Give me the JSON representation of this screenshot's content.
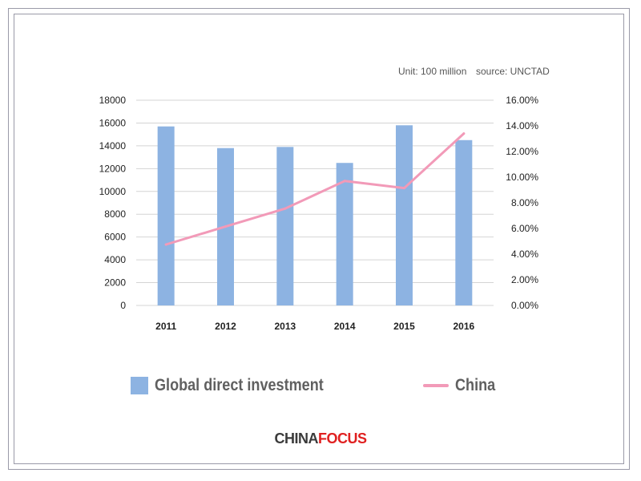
{
  "unit_note": "Unit: 100 million",
  "source_note": "source: UNCTAD",
  "logo": {
    "part1": "CHINA",
    "part2": "F",
    "part3": "O",
    "part4": "CUS"
  },
  "legend": [
    {
      "label": "Global direct investment",
      "kind": "bar",
      "color": "#8db3e2"
    },
    {
      "label": "China",
      "kind": "line",
      "color": "#f29ab8"
    }
  ],
  "chart_data": {
    "type": "bar",
    "categories": [
      "2011",
      "2012",
      "2013",
      "2014",
      "2015",
      "2016"
    ],
    "series": [
      {
        "name": "Global direct investment",
        "type": "bar",
        "axis": "left",
        "values": [
          15700,
          13800,
          13900,
          12500,
          15800,
          14500
        ],
        "color": "#8db3e2"
      },
      {
        "name": "China",
        "type": "line",
        "axis": "right",
        "values": [
          0.0475,
          0.0615,
          0.0755,
          0.097,
          0.0915,
          0.134
        ],
        "color": "#f29ab8"
      }
    ],
    "y_left": {
      "min": 0,
      "max": 18000,
      "ticks": [
        0,
        2000,
        4000,
        6000,
        8000,
        10000,
        12000,
        14000,
        16000,
        18000
      ]
    },
    "y_right": {
      "min": 0,
      "max": 0.16,
      "ticks": [
        "0.00%",
        "2.00%",
        "4.00%",
        "6.00%",
        "8.00%",
        "10.00%",
        "12.00%",
        "14.00%",
        "16.00%"
      ]
    },
    "grid": true,
    "legend_position": "bottom"
  }
}
